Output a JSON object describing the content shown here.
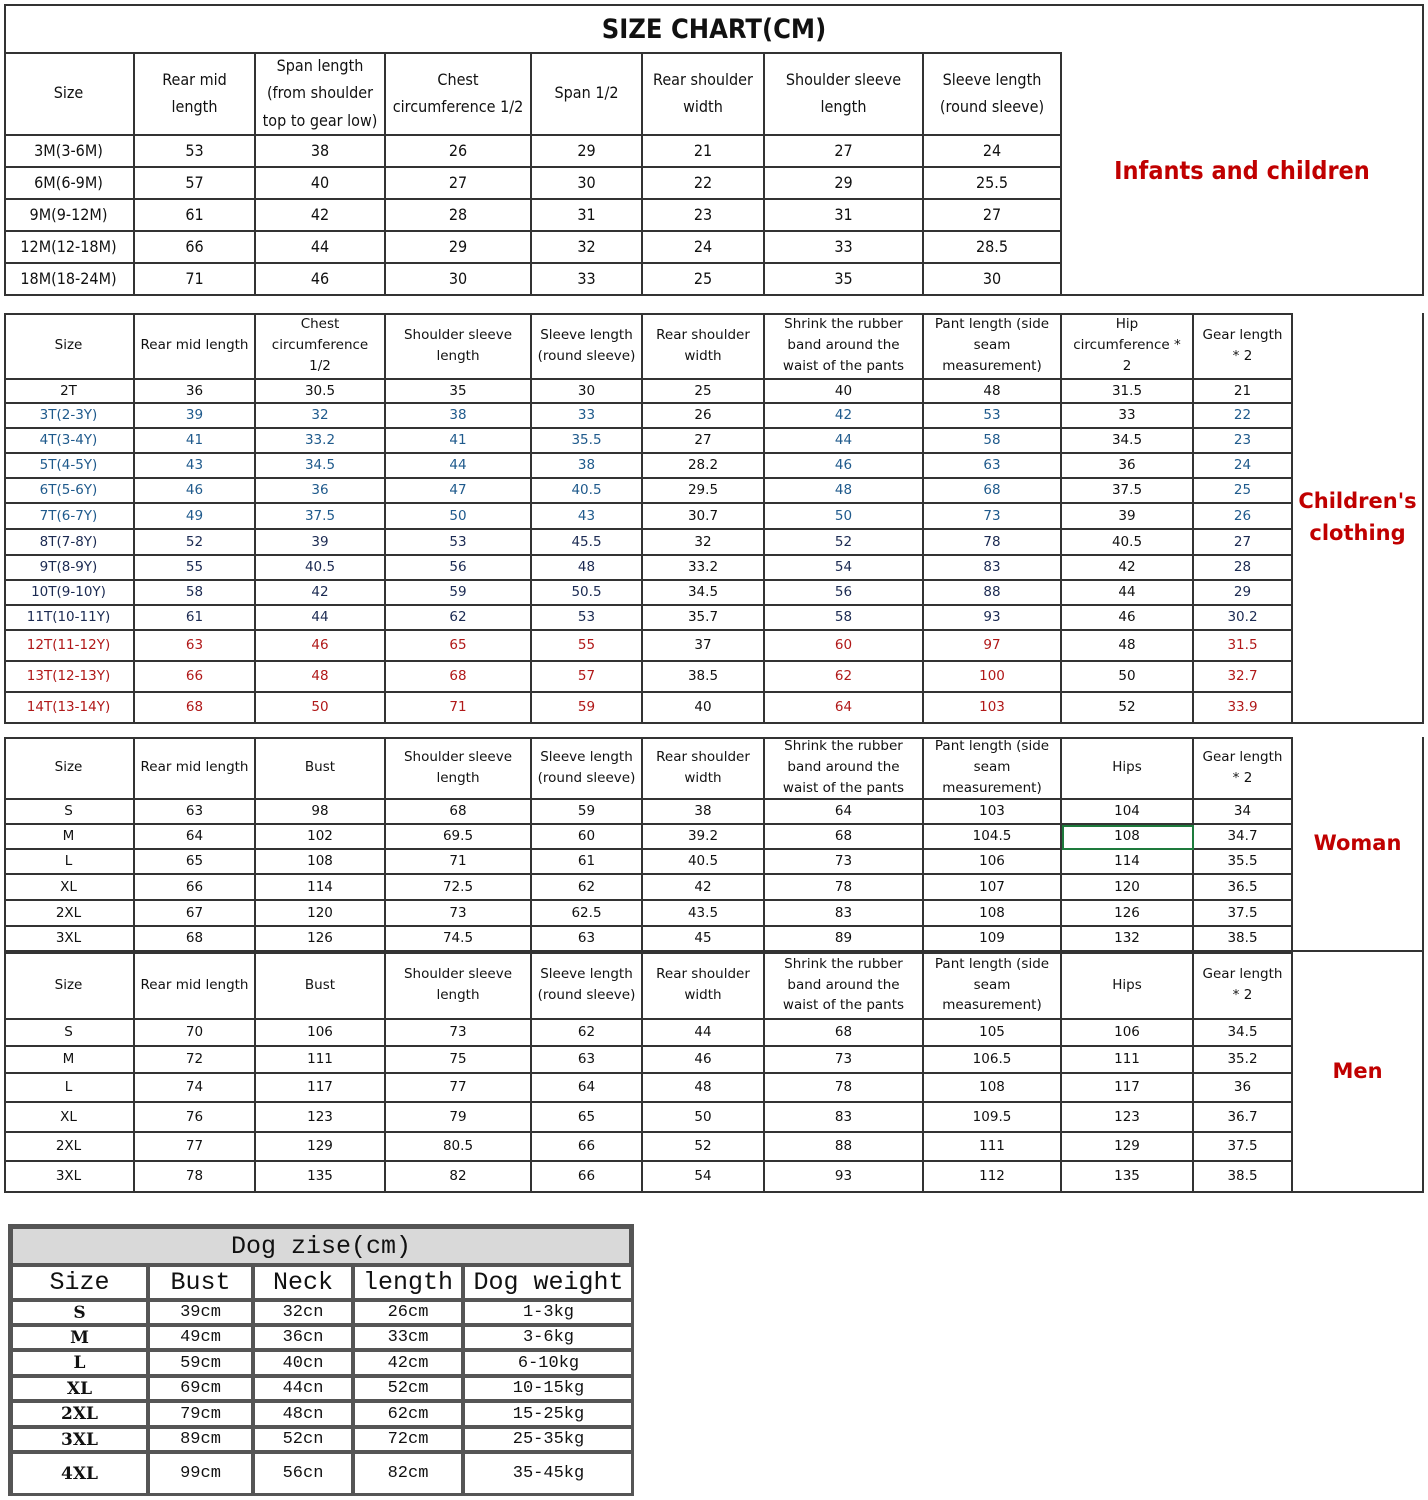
{
  "title": "SIZE CHART(CM)",
  "infants": {
    "label": "Infants and children",
    "headers": [
      "Size",
      "Rear mid length",
      "Span length\n(from shoulder\ntop to gear low)",
      "Chest\ncircumference 1/2",
      "Span 1/2",
      "Rear shoulder\nwidth",
      "Shoulder sleeve\nlength",
      "Sleeve length\n(round sleeve)"
    ],
    "rows": [
      [
        "3M(3-6M)",
        "53",
        "38",
        "26",
        "29",
        "21",
        "27",
        "24"
      ],
      [
        "6M(6-9M)",
        "57",
        "40",
        "27",
        "30",
        "22",
        "29",
        "25.5"
      ],
      [
        "9M(9-12M)",
        "61",
        "42",
        "28",
        "31",
        "23",
        "31",
        "27"
      ],
      [
        "12M(12-18M)",
        "66",
        "44",
        "29",
        "32",
        "24",
        "33",
        "28.5"
      ],
      [
        "18M(18-24M)",
        "71",
        "46",
        "30",
        "33",
        "25",
        "35",
        "30"
      ]
    ]
  },
  "children": {
    "label": "Children's\nclothing",
    "headers": [
      "Size",
      "Rear mid length",
      "Chest\ncircumference\n1/2",
      "Shoulder sleeve\nlength",
      "Sleeve length\n(round sleeve)",
      "Rear shoulder\nwidth",
      "Shrink the rubber\nband around the\nwaist of the pants",
      "Pant length (side\nseam\nmeasurement)",
      "Hip\ncircumference *\n2",
      "Gear length\n* 2"
    ],
    "rows": [
      [
        "2T",
        "36",
        "30.5",
        "35",
        "30",
        "25",
        "40",
        "48",
        "31.5",
        "21"
      ],
      [
        "3T(2-3Y)",
        "39",
        "32",
        "38",
        "33",
        "26",
        "42",
        "53",
        "33",
        "22"
      ],
      [
        "4T(3-4Y)",
        "41",
        "33.2",
        "41",
        "35.5",
        "27",
        "44",
        "58",
        "34.5",
        "23"
      ],
      [
        "5T(4-5Y)",
        "43",
        "34.5",
        "44",
        "38",
        "28.2",
        "46",
        "63",
        "36",
        "24"
      ],
      [
        "6T(5-6Y)",
        "46",
        "36",
        "47",
        "40.5",
        "29.5",
        "48",
        "68",
        "37.5",
        "25"
      ],
      [
        "7T(6-7Y)",
        "49",
        "37.5",
        "50",
        "43",
        "30.7",
        "50",
        "73",
        "39",
        "26"
      ],
      [
        "8T(7-8Y)",
        "52",
        "39",
        "53",
        "45.5",
        "32",
        "52",
        "78",
        "40.5",
        "27"
      ],
      [
        "9T(8-9Y)",
        "55",
        "40.5",
        "56",
        "48",
        "33.2",
        "54",
        "83",
        "42",
        "28"
      ],
      [
        "10T(9-10Y)",
        "58",
        "42",
        "59",
        "50.5",
        "34.5",
        "56",
        "88",
        "44",
        "29"
      ],
      [
        "11T(10-11Y)",
        "61",
        "44",
        "62",
        "53",
        "35.7",
        "58",
        "93",
        "46",
        "30.2"
      ],
      [
        "12T(11-12Y)",
        "63",
        "46",
        "65",
        "55",
        "37",
        "60",
        "97",
        "48",
        "31.5"
      ],
      [
        "13T(12-13Y)",
        "66",
        "48",
        "68",
        "57",
        "38.5",
        "62",
        "100",
        "50",
        "32.7"
      ],
      [
        "14T(13-14Y)",
        "68",
        "50",
        "71",
        "59",
        "40",
        "64",
        "103",
        "52",
        "33.9"
      ]
    ],
    "row_colors": [
      "#111111",
      "#1f5a8c",
      "#1f5a8c",
      "#1f5a8c",
      "#1f5a8c",
      "#1f5a8c",
      "#1b2a52",
      "#1b2a52",
      "#1b2a52",
      "#1b2a52",
      "#b01818",
      "#b01818",
      "#b01818"
    ]
  },
  "woman": {
    "label": "Woman",
    "headers": [
      "Size",
      "Rear mid length",
      "Bust",
      "Shoulder sleeve\nlength",
      "Sleeve length\n(round sleeve)",
      "Rear shoulder\nwidth",
      "Shrink the rubber\nband around the\nwaist of the pants",
      "Pant length (side\nseam\nmeasurement)",
      "Hips",
      "Gear length\n* 2"
    ],
    "rows": [
      [
        "S",
        "63",
        "98",
        "68",
        "59",
        "38",
        "64",
        "103",
        "104",
        "34"
      ],
      [
        "M",
        "64",
        "102",
        "69.5",
        "60",
        "39.2",
        "68",
        "104.5",
        "108",
        "34.7"
      ],
      [
        "L",
        "65",
        "108",
        "71",
        "61",
        "40.5",
        "73",
        "106",
        "114",
        "35.5"
      ],
      [
        "XL",
        "66",
        "114",
        "72.5",
        "62",
        "42",
        "78",
        "107",
        "120",
        "36.5"
      ],
      [
        "2XL",
        "67",
        "120",
        "73",
        "62.5",
        "43.5",
        "83",
        "108",
        "126",
        "37.5"
      ],
      [
        "3XL",
        "68",
        "126",
        "74.5",
        "63",
        "45",
        "89",
        "109",
        "132",
        "38.5"
      ]
    ]
  },
  "men": {
    "label": "Men",
    "headers": [
      "Size",
      "Rear mid length",
      "Bust",
      "Shoulder sleeve\nlength",
      "Sleeve length\n(round sleeve)",
      "Rear shoulder\nwidth",
      "Shrink the rubber\nband around the\nwaist of the pants",
      "Pant length (side\nseam\nmeasurement)",
      "Hips",
      "Gear length\n* 2"
    ],
    "rows": [
      [
        "S",
        "70",
        "106",
        "73",
        "62",
        "44",
        "68",
        "105",
        "106",
        "34.5"
      ],
      [
        "M",
        "72",
        "111",
        "75",
        "63",
        "46",
        "73",
        "106.5",
        "111",
        "35.2"
      ],
      [
        "L",
        "74",
        "117",
        "77",
        "64",
        "48",
        "78",
        "108",
        "117",
        "36"
      ],
      [
        "XL",
        "76",
        "123",
        "79",
        "65",
        "50",
        "83",
        "109.5",
        "123",
        "36.7"
      ],
      [
        "2XL",
        "77",
        "129",
        "80.5",
        "66",
        "52",
        "88",
        "111",
        "129",
        "37.5"
      ],
      [
        "3XL",
        "78",
        "135",
        "82",
        "66",
        "54",
        "93",
        "112",
        "135",
        "38.5"
      ]
    ]
  },
  "dog": {
    "title": "Dog zise(cm)",
    "headers": [
      "Size",
      "Bust",
      "Neck",
      "length",
      "Dog weight"
    ],
    "rows": [
      [
        "S",
        "39cm",
        "32cn",
        "26cm",
        "1-3kg"
      ],
      [
        "M",
        "49cm",
        "36cn",
        "33cm",
        "3-6kg"
      ],
      [
        "L",
        "59cm",
        "40cn",
        "42cm",
        "6-10kg"
      ],
      [
        "XL",
        "69cm",
        "44cn",
        "52cm",
        "10-15kg"
      ],
      [
        "2XL",
        "79cm",
        "48cn",
        "62cm",
        "15-25kg"
      ],
      [
        "3XL",
        "89cm",
        "52cn",
        "72cm",
        "25-35kg"
      ],
      [
        "4XL",
        "99cm",
        "56cn",
        "82cm",
        "35-45kg"
      ]
    ]
  },
  "colors": {
    "label_red": "#c00000",
    "selected_cell": "#1e7a3c"
  }
}
